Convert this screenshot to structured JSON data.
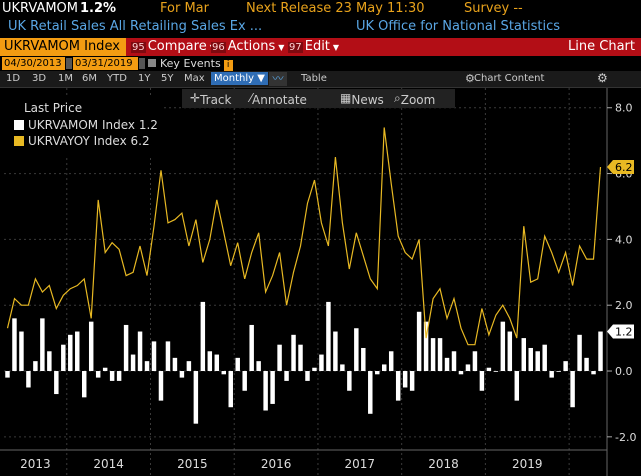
{
  "header": {
    "ticker": "UKRVAMOM",
    "last_value": "1.2%",
    "period": "For Mar",
    "next_release": "Next Release 23 May 11:30",
    "survey": "Survey --",
    "description": "UK Retail Sales All Retailing Sales Ex ...",
    "source": "UK Office for National Statistics"
  },
  "command_bar": {
    "security": "UKRVAMOM Index",
    "compare_num": "95",
    "compare": "Compare",
    "actions_num": "96",
    "actions": "Actions",
    "edit_num": "97",
    "edit": "Edit",
    "chart_type": "Line Chart"
  },
  "dates": {
    "start": "04/30/2013",
    "end": "03/31/2019",
    "key_events": "Key Events"
  },
  "timeframes": [
    "1D",
    "3D",
    "1M",
    "6M",
    "YTD",
    "1Y",
    "5Y",
    "Max"
  ],
  "frequency": "Monthly",
  "table_label": "Table",
  "chart_content": "Chart Content",
  "tools": {
    "track": "Track",
    "annotate": "Annotate",
    "news": "News",
    "zoom": "Zoom"
  },
  "legend": {
    "title": "Last Price",
    "items": [
      {
        "name": "UKRVAMOM Index",
        "value": "1.2",
        "color": "#ffffff"
      },
      {
        "name": "UKRVAYOY Index",
        "value": "6.2",
        "color": "#e8b923"
      }
    ]
  },
  "chart_data": {
    "type": "bar+line",
    "ylim": [
      -2.4,
      8.6
    ],
    "y_ticks": [
      "-2.0",
      "0.0",
      "2.0",
      "4.0",
      "6.0",
      "8.0"
    ],
    "x_labels": [
      "2013",
      "2014",
      "2015",
      "2016",
      "2017",
      "2018",
      "2019"
    ],
    "start": "2013-04",
    "last_labels": {
      "bars": "1.2",
      "line": "6.2"
    },
    "series": [
      {
        "name": "UKRVAMOM Index",
        "style": "bar",
        "values": [
          -0.2,
          1.6,
          1.2,
          -0.5,
          0.3,
          1.6,
          0.6,
          -0.7,
          0.8,
          1.1,
          1.2,
          -0.8,
          1.5,
          -0.2,
          0.1,
          -0.3,
          -0.3,
          1.4,
          0.5,
          1.2,
          0.3,
          0.9,
          -0.9,
          0.9,
          0.4,
          -0.2,
          0.3,
          -1.6,
          2.1,
          0.6,
          0.5,
          -0.1,
          -1.1,
          0.4,
          -0.6,
          1.4,
          0.3,
          -1.2,
          -1.0,
          0.8,
          -0.3,
          1.1,
          0.8,
          -0.3,
          0.1,
          0.5,
          2.1,
          1.2,
          0.2,
          -0.6,
          1.3,
          0.7,
          -1.3,
          -0.1,
          0.2,
          0.6,
          -0.9,
          -0.5,
          -0.6,
          1.8,
          1.5,
          1.0,
          1.0,
          0.4,
          0.6,
          -0.1,
          0.2,
          0.6,
          -0.6,
          0.1,
          0.0,
          1.5,
          1.2,
          -0.9,
          1.0,
          0.7,
          0.6,
          0.8,
          -0.2,
          0.0,
          0.3,
          -1.1,
          1.1,
          0.4,
          -0.1,
          1.2
        ]
      },
      {
        "name": "UKRVAYOY Index",
        "style": "line",
        "values": [
          1.3,
          2.2,
          2.0,
          2.0,
          2.8,
          2.4,
          2.6,
          1.9,
          2.3,
          2.5,
          2.6,
          2.8,
          1.6,
          5.2,
          3.6,
          3.9,
          3.7,
          2.9,
          3.0,
          3.8,
          2.9,
          4.4,
          6.1,
          4.5,
          4.6,
          4.8,
          3.8,
          4.6,
          3.3,
          4.0,
          5.2,
          4.2,
          3.2,
          3.9,
          2.8,
          3.6,
          4.2,
          2.4,
          2.9,
          3.6,
          2.0,
          3.0,
          3.8,
          5.1,
          5.8,
          4.5,
          3.8,
          6.5,
          4.5,
          3.1,
          4.2,
          3.5,
          2.8,
          2.5,
          7.4,
          5.7,
          4.1,
          3.6,
          3.4,
          4.0,
          1.0,
          2.2,
          2.5,
          1.6,
          2.2,
          1.3,
          0.8,
          0.8,
          1.9,
          1.1,
          1.7,
          2.0,
          1.6,
          1.0,
          4.4,
          2.7,
          2.8,
          4.1,
          3.6,
          3.0,
          3.6,
          2.6,
          3.8,
          3.4,
          3.4,
          6.2
        ]
      }
    ]
  }
}
